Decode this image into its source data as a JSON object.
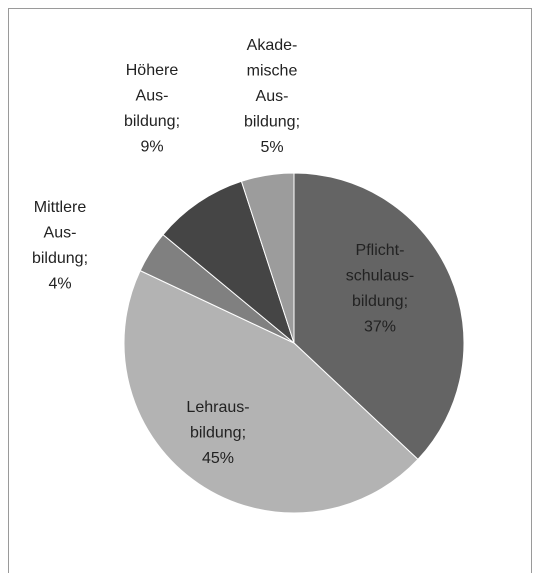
{
  "chart_data": {
    "type": "pie",
    "categories": [
      "Pflicht-\nschulaus-\nbildung;",
      "Lehraus-\nbildung;",
      "Mittlere\nAus-\nbildung;",
      "Höhere\nAus-\nbildung;",
      "Akade-\nmische\nAus-\nbildung;"
    ],
    "values": [
      37,
      45,
      4,
      9,
      5
    ],
    "value_labels": [
      "37%",
      "45%",
      "4%",
      "9%",
      "5%"
    ],
    "colors": [
      "#646464",
      "#b3b3b3",
      "#808080",
      "#454545",
      "#9c9c9c"
    ]
  }
}
